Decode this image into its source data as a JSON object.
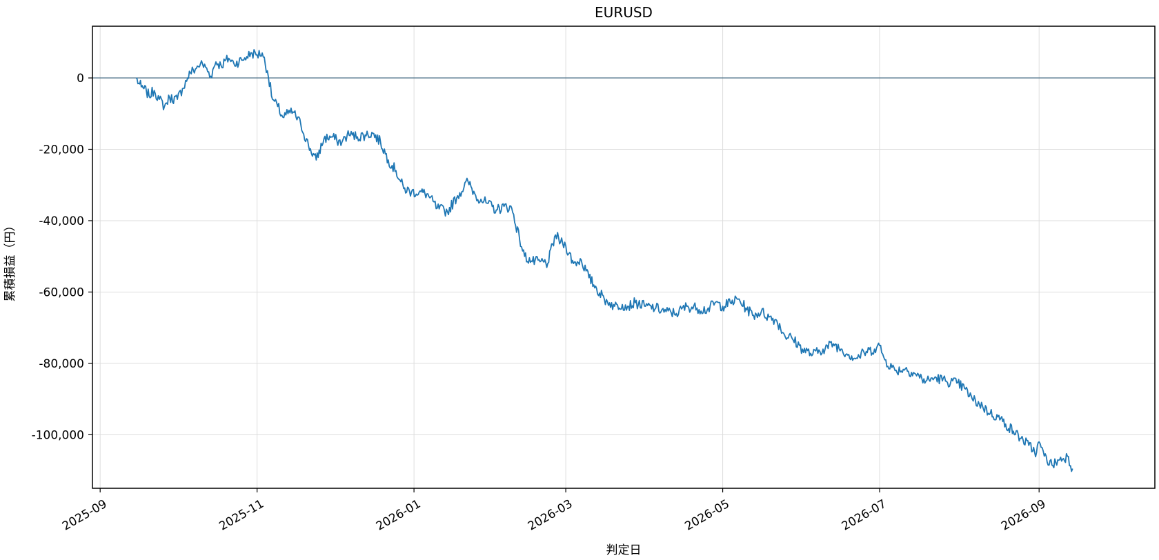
{
  "chart_data": {
    "type": "line",
    "title": "EURUSD",
    "xlabel": "判定日",
    "ylabel": "累積損益（円）",
    "x_ticks": [
      "2025-09",
      "2025-11",
      "2026-01",
      "2026-03",
      "2026-05",
      "2026-07",
      "2026-09"
    ],
    "y_ticks": [
      0,
      -20000,
      -40000,
      -60000,
      -80000,
      -100000
    ],
    "y_tick_labels": [
      "0",
      "-20,000",
      "-40,000",
      "-60,000",
      "-80,000",
      "-100,000"
    ],
    "xlim": [
      "2025-08-29",
      "2026-10-16"
    ],
    "ylim": [
      -115000,
      14500
    ],
    "grid": true,
    "reference_line_y": 0,
    "colors": {
      "line": "#1f77b4",
      "reference": "#4a6f86",
      "grid": "#dddddd"
    },
    "series": [
      {
        "x": [
          "2025-09-15",
          "2025-09-16",
          "2025-09-17",
          "2025-09-18",
          "2025-09-19",
          "2025-09-20",
          "2025-09-22",
          "2025-09-24",
          "2025-09-26",
          "2025-09-28",
          "2025-10-01",
          "2025-10-03",
          "2025-10-05",
          "2025-10-06",
          "2025-10-08",
          "2025-10-10",
          "2025-10-12",
          "2025-10-14",
          "2025-10-16",
          "2025-10-18",
          "2025-10-21",
          "2025-10-23",
          "2025-10-26",
          "2025-10-28",
          "2025-10-30",
          "2025-11-01",
          "2025-11-03",
          "2025-11-05",
          "2025-11-07",
          "2025-11-09",
          "2025-11-11",
          "2025-11-13",
          "2025-11-15",
          "2025-11-18",
          "2025-11-21",
          "2025-11-24",
          "2025-11-27",
          "2025-11-30",
          "2025-12-02",
          "2025-12-04",
          "2025-12-06",
          "2025-12-08",
          "2025-12-10",
          "2025-12-13",
          "2025-12-16",
          "2025-12-19",
          "2025-12-22",
          "2025-12-25",
          "2025-12-28",
          "2025-12-31",
          "2026-01-03",
          "2026-01-06",
          "2026-01-10",
          "2026-01-14",
          "2026-01-18",
          "2026-01-22",
          "2026-01-25",
          "2026-01-27",
          "2026-01-29",
          "2026-02-02",
          "2026-02-05",
          "2026-02-08",
          "2026-02-11",
          "2026-02-13",
          "2026-02-16",
          "2026-02-19",
          "2026-02-22",
          "2026-02-25",
          "2026-02-27",
          "2026-03-01",
          "2026-03-04",
          "2026-03-07",
          "2026-03-10",
          "2026-03-13",
          "2026-03-16",
          "2026-03-18",
          "2026-03-20",
          "2026-03-23",
          "2026-03-25",
          "2026-03-28",
          "2026-04-01",
          "2026-04-05",
          "2026-04-09",
          "2026-04-13",
          "2026-04-17",
          "2026-04-21",
          "2026-04-25",
          "2026-04-28",
          "2026-05-01",
          "2026-05-04",
          "2026-05-07",
          "2026-05-10",
          "2026-05-13",
          "2026-05-16",
          "2026-05-19",
          "2026-05-22",
          "2026-05-25",
          "2026-05-28",
          "2026-06-01",
          "2026-06-05",
          "2026-06-09",
          "2026-06-13",
          "2026-06-16",
          "2026-06-19",
          "2026-06-22",
          "2026-06-25",
          "2026-06-29",
          "2026-07-01",
          "2026-07-03",
          "2026-07-07",
          "2026-07-11",
          "2026-07-15",
          "2026-07-19",
          "2026-07-23",
          "2026-07-27",
          "2026-07-31",
          "2026-08-03",
          "2026-08-06",
          "2026-08-10",
          "2026-08-13",
          "2026-08-16",
          "2026-08-19",
          "2026-08-22",
          "2026-08-25",
          "2026-08-28",
          "2026-08-31",
          "2026-09-01",
          "2026-09-03",
          "2026-09-06",
          "2026-09-09",
          "2026-09-12",
          "2026-09-14"
        ],
        "y": [
          0,
          -1500,
          -2500,
          -3000,
          -3800,
          -5000,
          -3500,
          -6000,
          -8000,
          -5500,
          -6000,
          -3000,
          0,
          1500,
          2500,
          4000,
          3000,
          500,
          4500,
          3500,
          5500,
          4000,
          5000,
          6000,
          7000,
          6500,
          7000,
          2000,
          -6000,
          -8000,
          -11000,
          -10000,
          -9500,
          -13000,
          -19000,
          -23000,
          -17000,
          -16500,
          -17500,
          -18000,
          -16000,
          -16000,
          -16500,
          -16000,
          -15500,
          -18000,
          -23000,
          -26000,
          -31000,
          -32000,
          -32000,
          -32500,
          -36500,
          -37500,
          -33000,
          -29000,
          -33000,
          -34000,
          -35000,
          -37000,
          -36000,
          -36500,
          -45000,
          -50000,
          -51500,
          -51500,
          -52000,
          -44000,
          -46000,
          -47000,
          -52000,
          -51000,
          -56000,
          -59000,
          -62000,
          -63000,
          -64000,
          -63500,
          -64000,
          -63000,
          -64000,
          -64500,
          -65500,
          -66000,
          -64000,
          -64500,
          -65000,
          -63000,
          -64000,
          -63000,
          -62000,
          -64500,
          -66500,
          -65500,
          -67000,
          -68000,
          -72000,
          -73000,
          -76000,
          -77500,
          -76000,
          -74500,
          -76000,
          -77500,
          -78500,
          -77000,
          -76000,
          -75000,
          -79000,
          -82000,
          -81500,
          -83000,
          -85000,
          -84000,
          -85000,
          -85500,
          -87000,
          -90000,
          -92000,
          -94000,
          -95000,
          -97000,
          -99000,
          -101000,
          -103000,
          -105000,
          -102000,
          -106000,
          -108500,
          -107000,
          -106000,
          -109500
        ]
      }
    ]
  }
}
